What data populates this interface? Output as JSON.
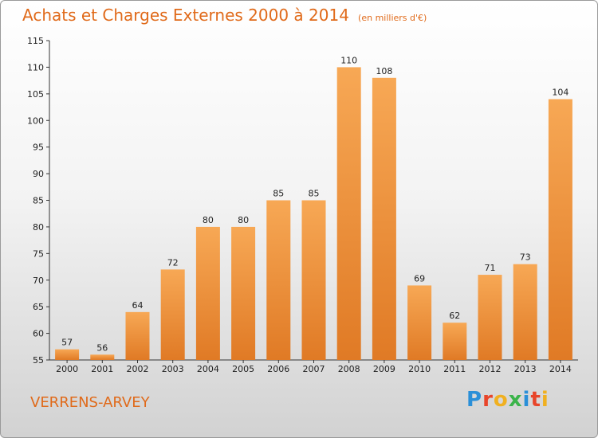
{
  "chart_data": {
    "type": "bar",
    "title": "Achats et Charges Externes 2000 à 2014",
    "subtitle": "(en milliers d'€)",
    "categories": [
      "2000",
      "2001",
      "2002",
      "2003",
      "2004",
      "2005",
      "2006",
      "2007",
      "2008",
      "2009",
      "2010",
      "2011",
      "2012",
      "2013",
      "2014"
    ],
    "values": [
      57,
      56,
      64,
      72,
      80,
      80,
      85,
      85,
      110,
      108,
      69,
      62,
      71,
      73,
      104
    ],
    "ylim": [
      55,
      115
    ],
    "yticks": [
      55,
      60,
      65,
      70,
      75,
      80,
      85,
      90,
      95,
      100,
      105,
      110,
      115
    ],
    "grid": false,
    "bar_color": "#f0a050"
  },
  "footer": {
    "commune": "VERRENS-ARVEY",
    "brand": "Proxiti"
  }
}
